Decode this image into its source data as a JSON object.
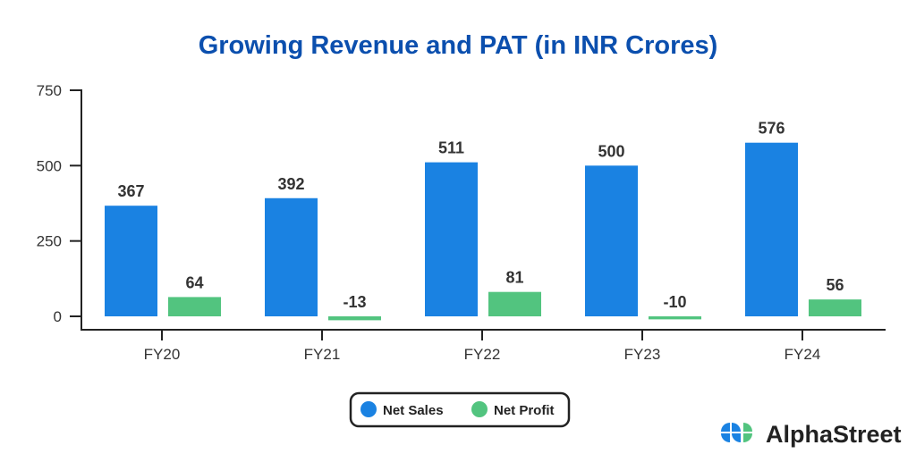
{
  "chart_data": {
    "type": "bar",
    "title": "Growing Revenue and PAT (in INR Crores)",
    "xlabel": "",
    "ylabel": "",
    "categories": [
      "FY20",
      "FY21",
      "FY22",
      "FY23",
      "FY24"
    ],
    "series": [
      {
        "name": "Net Sales",
        "color": "#1a82e2",
        "values": [
          367,
          392,
          511,
          500,
          576
        ]
      },
      {
        "name": "Net Profit",
        "color": "#52c47f",
        "values": [
          64,
          -13,
          81,
          -10,
          56
        ]
      }
    ],
    "ylim": [
      0,
      750
    ],
    "yticks": [
      0,
      250,
      500,
      750
    ],
    "grid": false,
    "legend_position": "bottom-center"
  },
  "brand": {
    "name": "AlphaStreet",
    "colors": [
      "#1a82e2",
      "#52c47f"
    ]
  }
}
